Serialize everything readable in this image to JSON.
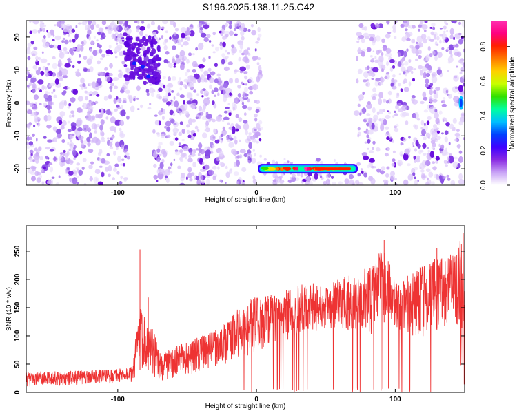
{
  "title": "S196.2025.138.11.25.C42",
  "chart_data": [
    {
      "type": "heatmap",
      "title": "S196.2025.138.11.25.C42",
      "xlabel": "Height of straight line (km)",
      "ylabel": "Frequency (Hz)",
      "xlim": [
        -166,
        150
      ],
      "ylim": [
        -25,
        25
      ],
      "xticks": [
        "-100",
        "0",
        "100"
      ],
      "yticks": [
        "-20",
        "-10",
        "0",
        "10",
        "20"
      ],
      "colorbar": {
        "label": "Normalized spectral amplitude",
        "range": [
          0.0,
          0.95
        ],
        "ticks": [
          "0.0",
          "0.2",
          "0.4",
          "0.6",
          "0.8"
        ],
        "colors": [
          "#ffffff",
          "#c9a3f6",
          "#8a2be2",
          "#3f00ff",
          "#0040ff",
          "#00bfff",
          "#00ffa0",
          "#30e000",
          "#c8ff00",
          "#ffd000",
          "#ff7a00",
          "#ff2000",
          "#ff0080",
          "#ff2fb0"
        ]
      },
      "empty_regions": [
        {
          "x": [
            3,
            72
          ],
          "y": [
            -17,
            25
          ]
        },
        {
          "x": [
            -92,
            -74
          ],
          "y": [
            -25,
            -2
          ]
        }
      ],
      "features": [
        {
          "name": "horizontal band",
          "x": [
            2,
            72
          ],
          "y": -20,
          "peak_amplitude": 0.95
        },
        {
          "name": "cluster",
          "x": [
            -95,
            -70
          ],
          "y": [
            6,
            20
          ],
          "peak_amplitude": 0.3
        },
        {
          "name": "edge spot",
          "x": [
            146,
            149
          ],
          "y": [
            -2,
            2
          ],
          "peak_amplitude": 0.25
        }
      ],
      "grid": false,
      "legend": "right"
    },
    {
      "type": "line",
      "xlabel": "Height of straight line (km)",
      "ylabel": "SNR (10 * v/v)",
      "xlim": [
        -166,
        150
      ],
      "ylim": [
        0,
        295
      ],
      "xticks": [
        "-100",
        "0",
        "100"
      ],
      "yticks": [
        "0",
        "50",
        "100",
        "150",
        "200",
        "250"
      ],
      "series": [
        {
          "color": "#ee3333",
          "envelope": {
            "x": [
              -166,
              -140,
              -110,
              -90,
              -86,
              -84,
              -80,
              -75,
              -70,
              -60,
              -50,
              -40,
              -30,
              -20,
              -10,
              0,
              10,
              20,
              30,
              40,
              50,
              60,
              70,
              80,
              85,
              90,
              95,
              100,
              110,
              120,
              130,
              140,
              145,
              148,
              150
            ],
            "low": [
              10,
              12,
              15,
              18,
              30,
              40,
              45,
              30,
              20,
              25,
              30,
              35,
              45,
              50,
              60,
              70,
              85,
              90,
              95,
              105,
              110,
              110,
              105,
              100,
              95,
              120,
              130,
              110,
              100,
              95,
              110,
              120,
              110,
              5,
              5
            ],
            "high": [
              35,
              38,
              40,
              45,
              120,
              150,
              140,
              120,
              70,
              80,
              90,
              100,
              110,
              130,
              160,
              170,
              175,
              180,
              190,
              195,
              185,
              205,
              215,
              220,
              225,
              260,
              235,
              200,
              210,
              225,
              240,
              250,
              255,
              280,
              295
            ]
          },
          "spikes": [
            {
              "x": -84,
              "y": 253
            },
            {
              "x": -78,
              "y": 168
            },
            {
              "x": 92,
              "y": 270
            },
            {
              "x": 130,
              "y": 255
            },
            {
              "x": 150,
              "y": 295
            }
          ]
        }
      ],
      "grid": false
    }
  ]
}
